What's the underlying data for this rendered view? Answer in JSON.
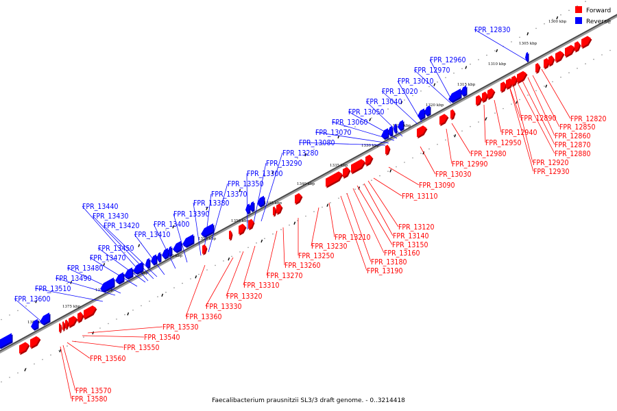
{
  "legend": {
    "forward_label": "Forward",
    "reverse_label": "Reverse",
    "forward_color": "#ff0000",
    "reverse_color": "#0000ff"
  },
  "caption": "Faecalibacterium prausnitzii SL3/3 draft genome. - 0..3214418",
  "ticks": [
    "1300 kbp",
    "1305 kbp",
    "1310 kbp",
    "1315 kbp",
    "1320 kbp",
    "1325 kbp",
    "1330 kbp",
    "1335 kbp",
    "1340 kbp",
    "1345 kbp",
    "1350 kbp",
    "1355 kbp",
    "1360 kbp",
    "1365 kbp",
    "1370 kbp",
    "1375 kbp",
    "1380 kbp"
  ],
  "reverse_genes": [
    "FPR_12830",
    "FPR_12960",
    "FPR_12970",
    "FPR_13010",
    "FPR_13020",
    "FPR_13040",
    "FPR_13050",
    "FPR_13060",
    "FPR_13070",
    "FPR_13080",
    "FPR_13280",
    "FPR_13290",
    "FPR_13300",
    "FPR_13350",
    "FPR_13370",
    "FPR_13380",
    "FPR_13390",
    "FPR_13400",
    "FPR_13410",
    "FPR_13420",
    "FPR_13430",
    "FPR_13440",
    "FPR_13450",
    "FPR_13470",
    "FPR_13480",
    "FPR_13490",
    "FPR_13510",
    "FPR_13600"
  ],
  "forward_genes": [
    "FPR_12820",
    "FPR_12850",
    "FPR_12860",
    "FPR_12870",
    "FPR_12880",
    "FPR_12890",
    "FPR_12920",
    "FPR_12930",
    "FPR_12940",
    "FPR_12950",
    "FPR_12980",
    "FPR_12990",
    "FPR_13030",
    "FPR_13090",
    "FPR_13110",
    "FPR_13120",
    "FPR_13140",
    "FPR_13150",
    "FPR_13160",
    "FPR_13180",
    "FPR_13190",
    "FPR_13210",
    "FPR_13230",
    "FPR_13250",
    "FPR_13260",
    "FPR_13270",
    "FPR_13310",
    "FPR_13320",
    "FPR_13330",
    "FPR_13360",
    "FPR_13530",
    "FPR_13540",
    "FPR_13550",
    "FPR_13560",
    "FPR_13570",
    "FPR_13580"
  ]
}
